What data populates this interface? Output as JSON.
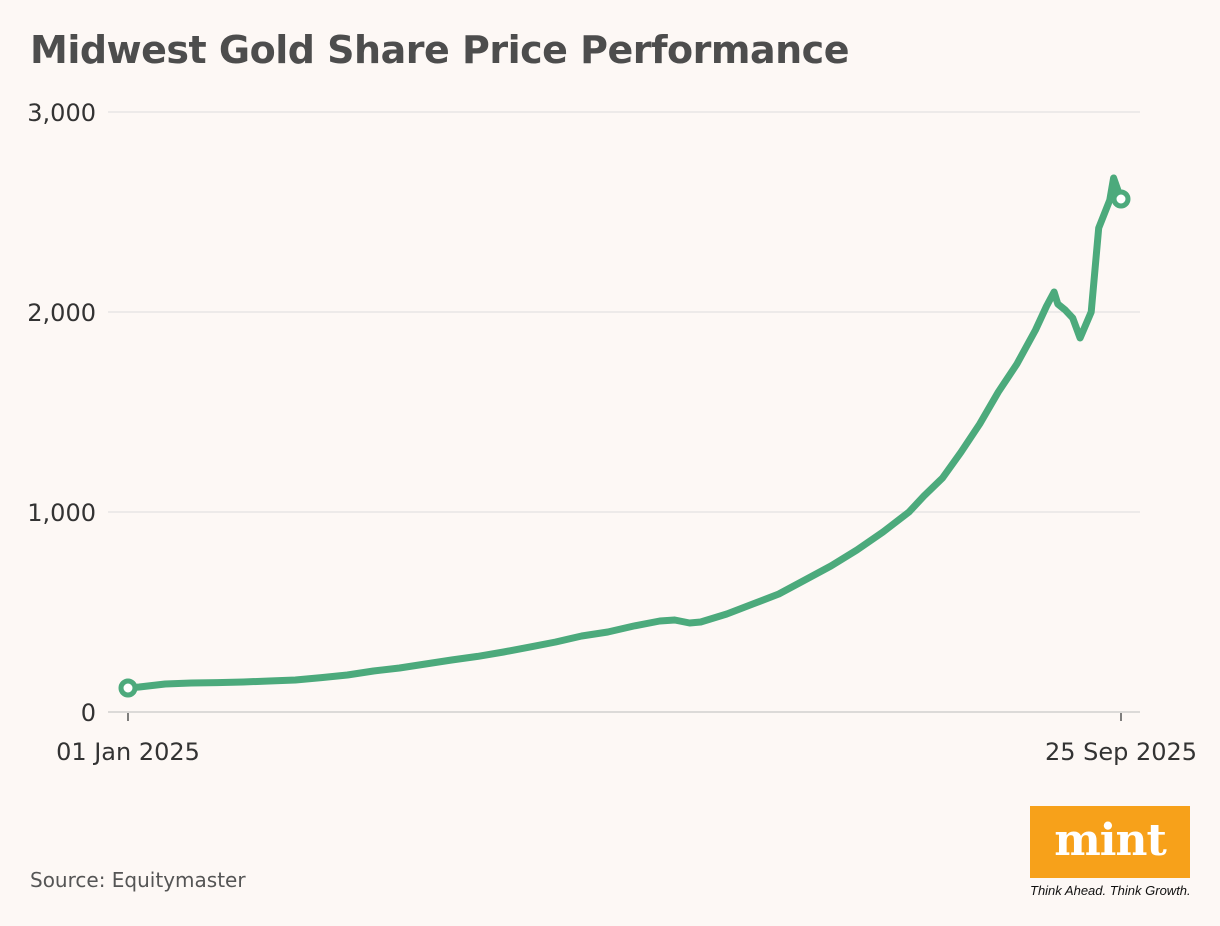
{
  "header": {
    "title": "Midwest Gold Share Price Performance"
  },
  "footer": {
    "source": "Source: Equitymaster"
  },
  "logo": {
    "word": "mint",
    "tagline": "Think Ahead. Think Growth."
  },
  "colors": {
    "line": "#4caa7c",
    "grid": "#dddddd",
    "logo_bg": "#f7a11a"
  },
  "chart_data": {
    "type": "line",
    "title": "Midwest Gold Share Price Performance",
    "xlabel": "",
    "ylabel": "",
    "ylim": [
      0,
      3000
    ],
    "yticks": [
      0,
      1000,
      2000,
      3000
    ],
    "ytick_labels": [
      "0",
      "1,000",
      "2,000",
      "3,000"
    ],
    "xlim": [
      "2025-01-01",
      "2025-09-25"
    ],
    "xtick_labels": [
      "01 Jan 2025",
      "25 Sep 2025"
    ],
    "grid": true,
    "markers": [
      "first",
      "last"
    ],
    "series": [
      {
        "points": [
          [
            "2025-01-01",
            120
          ],
          [
            "2025-01-04",
            125
          ],
          [
            "2025-01-11",
            140
          ],
          [
            "2025-01-18",
            145
          ],
          [
            "2025-01-25",
            147
          ],
          [
            "2025-02-01",
            150
          ],
          [
            "2025-02-08",
            155
          ],
          [
            "2025-02-15",
            160
          ],
          [
            "2025-02-22",
            172
          ],
          [
            "2025-03-01",
            185
          ],
          [
            "2025-03-08",
            205
          ],
          [
            "2025-03-15",
            220
          ],
          [
            "2025-03-22",
            240
          ],
          [
            "2025-03-29",
            260
          ],
          [
            "2025-04-05",
            278
          ],
          [
            "2025-04-12",
            300
          ],
          [
            "2025-04-19",
            325
          ],
          [
            "2025-04-26",
            350
          ],
          [
            "2025-05-03",
            380
          ],
          [
            "2025-05-10",
            400
          ],
          [
            "2025-05-17",
            430
          ],
          [
            "2025-05-24",
            455
          ],
          [
            "2025-05-28",
            460
          ],
          [
            "2025-06-01",
            445
          ],
          [
            "2025-06-04",
            450
          ],
          [
            "2025-06-11",
            490
          ],
          [
            "2025-06-18",
            540
          ],
          [
            "2025-06-25",
            590
          ],
          [
            "2025-07-02",
            660
          ],
          [
            "2025-07-09",
            730
          ],
          [
            "2025-07-16",
            810
          ],
          [
            "2025-07-23",
            900
          ],
          [
            "2025-07-30",
            1000
          ],
          [
            "2025-08-03",
            1080
          ],
          [
            "2025-08-08",
            1170
          ],
          [
            "2025-08-13",
            1300
          ],
          [
            "2025-08-18",
            1440
          ],
          [
            "2025-08-23",
            1600
          ],
          [
            "2025-08-28",
            1740
          ],
          [
            "2025-09-02",
            1910
          ],
          [
            "2025-09-05",
            2030
          ],
          [
            "2025-09-07",
            2100
          ],
          [
            "2025-09-08",
            2040
          ],
          [
            "2025-09-10",
            2010
          ],
          [
            "2025-09-12",
            1970
          ],
          [
            "2025-09-14",
            1870
          ],
          [
            "2025-09-17",
            2000
          ],
          [
            "2025-09-19",
            2420
          ],
          [
            "2025-09-22",
            2560
          ],
          [
            "2025-09-23",
            2670
          ],
          [
            "2025-09-25",
            2565
          ]
        ]
      }
    ]
  }
}
